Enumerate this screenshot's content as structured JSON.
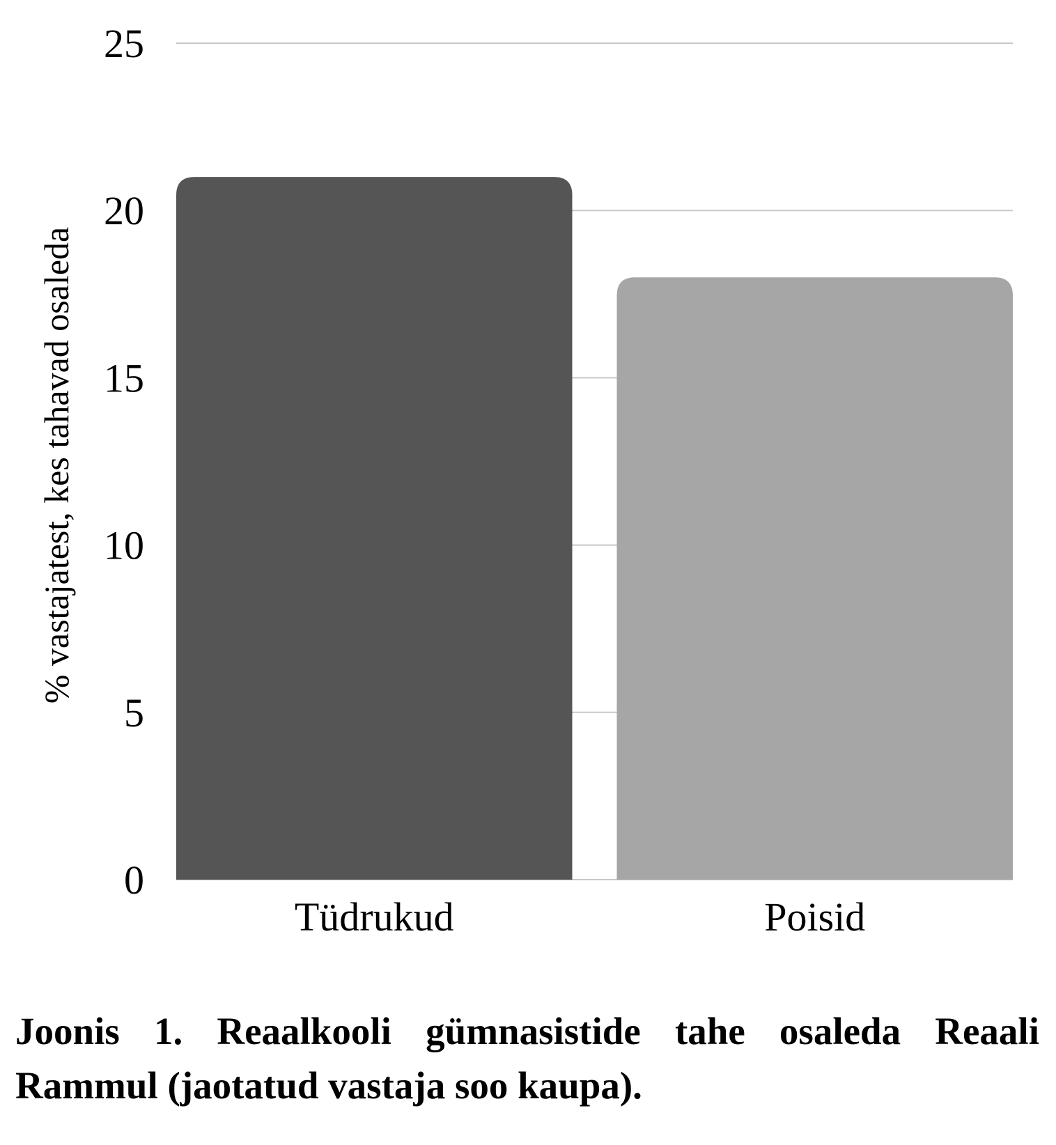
{
  "chart_data": {
    "type": "bar",
    "categories": [
      "Tüdrukud",
      "Poisid"
    ],
    "values": [
      21,
      18
    ],
    "ylabel": "% vastajatest, kes tahavad osaleda",
    "xlabel": "",
    "ylim": [
      0,
      25
    ],
    "yticks": [
      0,
      5,
      10,
      15,
      20,
      25
    ],
    "grid": true,
    "legend": "none",
    "colors": [
      "#555555",
      "#a6a6a6"
    ],
    "gridColor": "#c8c8c8"
  },
  "caption": "Joonis 1. Reaalkooli gümnasistide tahe osaleda Reaali Rammul (jaotatud vastaja soo kaupa)."
}
